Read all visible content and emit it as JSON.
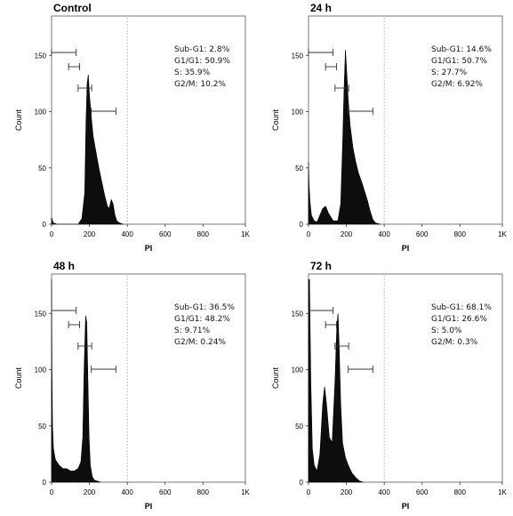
{
  "chart_data": [
    {
      "type": "area",
      "title": "Control",
      "xlabel": "PI",
      "ylabel": "Count",
      "xlim": [
        0,
        1024
      ],
      "ylim": [
        0,
        185
      ],
      "x_ticks": [
        "0",
        "200",
        "400",
        "600",
        "800",
        "1K"
      ],
      "y_ticks": [
        "0",
        "50",
        "100",
        "150"
      ],
      "gates": [
        "Sub-G1: 2.8%",
        "G1/G1: 50.9%",
        "S: 35.9%",
        "G2/M: 10.2%"
      ],
      "histogram": {
        "x": [
          0,
          5,
          10,
          30,
          60,
          100,
          140,
          160,
          175,
          182,
          188,
          194,
          200,
          210,
          220,
          235,
          250,
          265,
          280,
          295,
          305,
          315,
          325,
          335,
          345,
          360,
          380
        ],
        "y": [
          6,
          3,
          1,
          0,
          0,
          0,
          0,
          5,
          28,
          90,
          125,
          133,
          115,
          95,
          78,
          64,
          50,
          38,
          26,
          16,
          14,
          22,
          18,
          8,
          3,
          1,
          0
        ]
      }
    },
    {
      "type": "area",
      "title": "24 h",
      "xlabel": "PI",
      "ylabel": "Count",
      "xlim": [
        0,
        1024
      ],
      "ylim": [
        0,
        185
      ],
      "x_ticks": [
        "0",
        "200",
        "400",
        "600",
        "800",
        "1K"
      ],
      "y_ticks": [
        "0",
        "50",
        "100",
        "150"
      ],
      "gates": [
        "Sub-G1: 14.6%",
        "G1/G1: 50.7%",
        "S: 27.7%",
        "G2/M: 6.92%"
      ],
      "histogram": {
        "x": [
          0,
          3,
          8,
          15,
          30,
          45,
          60,
          75,
          90,
          105,
          130,
          155,
          170,
          180,
          188,
          195,
          202,
          210,
          220,
          235,
          250,
          265,
          280,
          295,
          310,
          325,
          340,
          355,
          380
        ],
        "y": [
          55,
          35,
          20,
          8,
          3,
          2,
          8,
          14,
          16,
          10,
          3,
          3,
          18,
          70,
          120,
          155,
          135,
          110,
          88,
          68,
          55,
          45,
          38,
          30,
          22,
          12,
          4,
          1,
          0
        ]
      }
    },
    {
      "type": "area",
      "title": "48 h",
      "xlabel": "PI",
      "ylabel": "Count",
      "xlim": [
        0,
        1024
      ],
      "ylim": [
        0,
        185
      ],
      "x_ticks": [
        "0",
        "200",
        "400",
        "600",
        "800",
        "1K"
      ],
      "y_ticks": [
        "0",
        "50",
        "100",
        "150"
      ],
      "gates": [
        "Sub-G1: 36.5%",
        "G1/G1: 48.2%",
        "S: 9.71%",
        "G2/M: 0.24%"
      ],
      "histogram": {
        "x": [
          0,
          2,
          5,
          10,
          20,
          40,
          60,
          80,
          100,
          120,
          140,
          155,
          165,
          172,
          180,
          186,
          192,
          198,
          205,
          215,
          225,
          240,
          260
        ],
        "y": [
          180,
          100,
          50,
          30,
          20,
          15,
          12,
          12,
          10,
          10,
          12,
          18,
          40,
          100,
          148,
          142,
          90,
          40,
          15,
          5,
          2,
          1,
          0
        ]
      }
    },
    {
      "type": "area",
      "title": "72 h",
      "xlabel": "PI",
      "ylabel": "Count",
      "xlim": [
        0,
        1024
      ],
      "ylim": [
        0,
        185
      ],
      "x_ticks": [
        "0",
        "200",
        "400",
        "600",
        "800",
        "1K"
      ],
      "y_ticks": [
        "0",
        "50",
        "100",
        "150"
      ],
      "gates": [
        "Sub-G1: 68.1%",
        "G1/G1: 26.6%",
        "S: 5.0%",
        "G2/M: 0.3%"
      ],
      "histogram": {
        "x": [
          0,
          5,
          12,
          20,
          30,
          45,
          60,
          75,
          85,
          95,
          110,
          125,
          140,
          150,
          156,
          162,
          170,
          180,
          195,
          210,
          230,
          250,
          270,
          290
        ],
        "y": [
          180,
          180,
          90,
          30,
          15,
          10,
          25,
          70,
          85,
          70,
          40,
          35,
          90,
          140,
          150,
          120,
          70,
          35,
          22,
          15,
          8,
          4,
          1,
          0
        ]
      }
    }
  ]
}
